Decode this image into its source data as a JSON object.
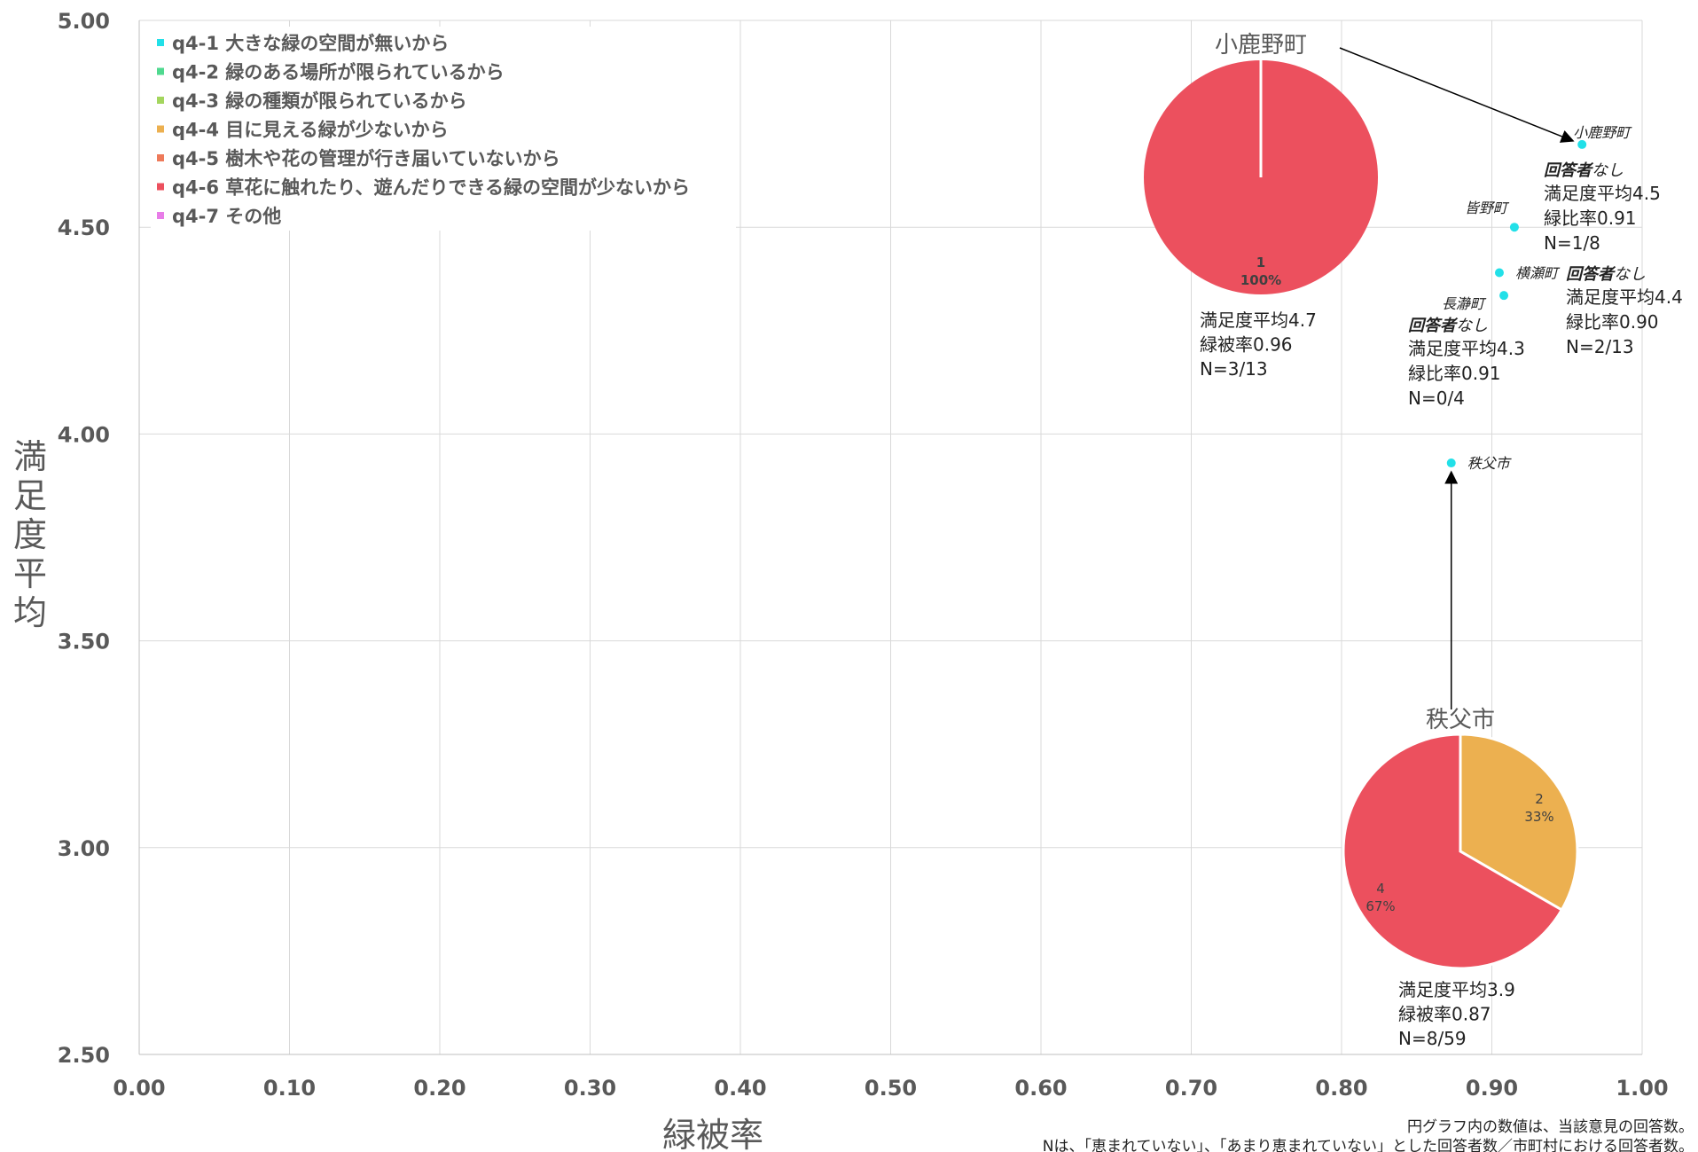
{
  "chart_data": {
    "type": "scatter",
    "xlabel": "緑被率",
    "ylabel": "満足度平均",
    "xlim": [
      0,
      1
    ],
    "ylim": [
      2.5,
      5
    ],
    "x_ticks": [
      "0.00",
      "0.10",
      "0.20",
      "0.30",
      "0.40",
      "0.50",
      "0.60",
      "0.70",
      "0.80",
      "0.90",
      "1.00"
    ],
    "y_ticks": [
      "2.50",
      "3.00",
      "3.50",
      "4.00",
      "4.50",
      "5.00"
    ],
    "grid": true,
    "legend_position": "top-left",
    "legend": [
      {
        "label": "q4-1 大きな緑の空間が無いから",
        "color": "#22e0e8"
      },
      {
        "label": "q4-2 緑のある場所が限られているから",
        "color": "#4fd98f"
      },
      {
        "label": "q4-3 緑の種類が限られているから",
        "color": "#a4d65e"
      },
      {
        "label": "q4-4 目に見える緑が少ないから",
        "color": "#ecb050"
      },
      {
        "label": "q4-5 樹木や花の管理が行き届いていないから",
        "color": "#ee7a5a"
      },
      {
        "label": "q4-6 草花に触れたり、遊んだりできる緑の空間が少ないから",
        "color": "#ec505e"
      },
      {
        "label": "q4-7 その他",
        "color": "#e87de8"
      }
    ],
    "points": [
      {
        "name": "小鹿野町",
        "x": 0.96,
        "y": 4.7,
        "color": "#22e0e8"
      },
      {
        "name": "皆野町",
        "x": 0.915,
        "y": 4.5,
        "color": "#22e0e8"
      },
      {
        "name": "横瀬町",
        "x": 0.905,
        "y": 4.39,
        "color": "#22e0e8"
      },
      {
        "name": "長瀞町",
        "x": 0.908,
        "y": 4.335,
        "color": "#22e0e8"
      },
      {
        "name": "秩父市",
        "x": 0.873,
        "y": 3.93,
        "color": "#22e0e8"
      }
    ],
    "pies": [
      {
        "title": "小鹿野町",
        "slices": [
          {
            "category": "q4-6",
            "count": 1,
            "pct": "100%",
            "color": "#ec505e"
          }
        ],
        "info": [
          "満足度平均4.7",
          "緑被率0.96",
          "N=3/13"
        ]
      },
      {
        "title": "秩父市",
        "slices": [
          {
            "category": "q4-4",
            "count": 2,
            "pct": "33%",
            "color": "#ecb050"
          },
          {
            "category": "q4-6",
            "count": 4,
            "pct": "67%",
            "color": "#ec505e"
          }
        ],
        "info": [
          "満足度平均3.9",
          "緑被率0.87",
          "N=8/59"
        ]
      }
    ],
    "no_response_boxes": [
      {
        "town": "皆野町",
        "head_bold": "回答者",
        "head_rest": "なし",
        "lines": [
          "満足度平均4.5",
          "緑比率0.91",
          "N=1/8"
        ]
      },
      {
        "town": "横瀬町",
        "head_bold": "回答者",
        "head_rest": "なし",
        "lines": [
          "満足度平均4.4",
          "緑比率0.90",
          "N=2/13"
        ]
      },
      {
        "town": "長瀞町",
        "head_bold": "回答者",
        "head_rest": "なし",
        "lines": [
          "満足度平均4.3",
          "緑比率0.91",
          "N=0/4"
        ]
      }
    ],
    "footnotes": [
      "円グラフ内の数値は、当該意見の回答数。",
      "Nは、「恵まれていない」、「あまり恵まれていない」とした回答者数／市町村における回答者数。"
    ]
  }
}
